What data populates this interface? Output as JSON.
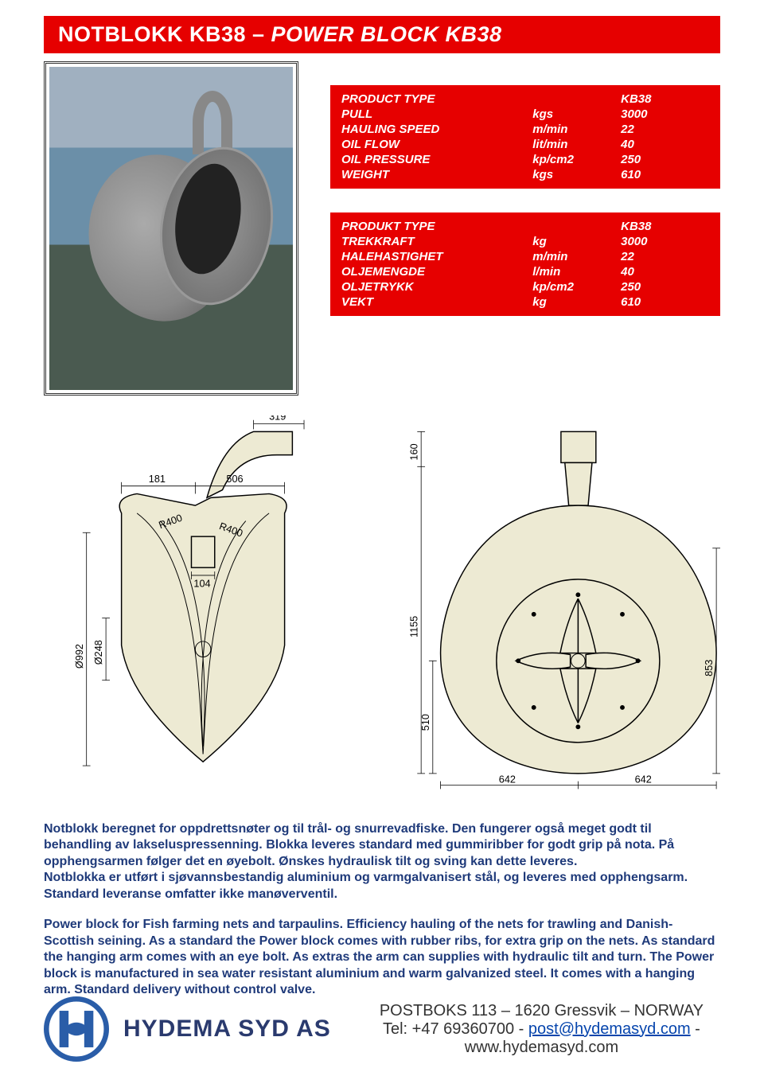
{
  "brand_red": "#e60000",
  "text_blue": "#1f3a7a",
  "beige": "#edead3",
  "logo_color": "#2a5da8",
  "title": {
    "left": "NOTBLOKK KB38",
    "sep": "  –  ",
    "right": "POWER BLOCK KB38"
  },
  "spec_en": {
    "rows": [
      {
        "label": "PRODUCT TYPE",
        "unit": "",
        "val": "KB38"
      },
      {
        "label": "PULL",
        "unit": "kgs",
        "val": "3000"
      },
      {
        "label": "HAULING SPEED",
        "unit": "m/min",
        "val": "22"
      },
      {
        "label": "OIL FLOW",
        "unit": "lit/min",
        "val": "40"
      },
      {
        "label": "OIL PRESSURE",
        "unit": "kp/cm2",
        "val": "250"
      },
      {
        "label": "WEIGHT",
        "unit": "kgs",
        "val": "610"
      }
    ]
  },
  "spec_no": {
    "rows": [
      {
        "label": "PRODUKT TYPE",
        "unit": "",
        "val": "KB38"
      },
      {
        "label": "TREKKRAFT",
        "unit": "kg",
        "val": "3000"
      },
      {
        "label": "HALEHASTIGHET",
        "unit": "m/min",
        "val": "22"
      },
      {
        "label": "OLJEMENGDE",
        "unit": "l/min",
        "val": "40"
      },
      {
        "label": "OLJETRYKK",
        "unit": "kp/cm2",
        "val": "250"
      },
      {
        "label": "VEKT",
        "unit": "kg",
        "val": "610"
      }
    ]
  },
  "dims_front": {
    "d181": "181",
    "d506": "506",
    "d319": "319",
    "r400a": "R400",
    "r400b": "R400",
    "d104": "104",
    "d992": "Ø992",
    "d248": "Ø248"
  },
  "dims_side": {
    "d160": "160",
    "d1155": "1155",
    "d510": "510",
    "d853": "853",
    "d642a": "642",
    "d642b": "642"
  },
  "para_no": "Notblokk beregnet for oppdrettsnøter og til trål- og snurrevadfiske. Den fungerer også meget godt til behandling av lakseluspressenning. Blokka leveres standard med gummiribber for godt grip på nota.  På opphengsarmen følger det en øyebolt. Ønskes hydraulisk tilt og sving kan dette leveres.\nNotblokka er utført i sjøvannsbestandig aluminium og varmgalvanisert stål, og leveres med opphengsarm. Standard leveranse omfatter ikke manøverventil.",
  "para_en": "Power block for Fish farming nets and tarpaulins.  Efficiency hauling of the nets for trawling and Danish-Scottish seining. As a standard the Power block comes with rubber ribs, for extra grip on the nets. As standard the hanging arm comes with an eye bolt. As extras the arm can supplies with hydraulic tilt and turn. The Power block is manufactured in sea water resistant aluminium and warm galvanized steel.  It comes with a hanging arm. Standard delivery without control valve.",
  "footer": {
    "company": "HYDEMA SYD AS",
    "line1": "POSTBOKS 113 – 1620  Gressvik – NORWAY",
    "tel_prefix": "Tel: +47 69360700  -  ",
    "email": "post@hydemasyd.com",
    "sep": "  -",
    "www": "www.hydemasyd.com"
  }
}
